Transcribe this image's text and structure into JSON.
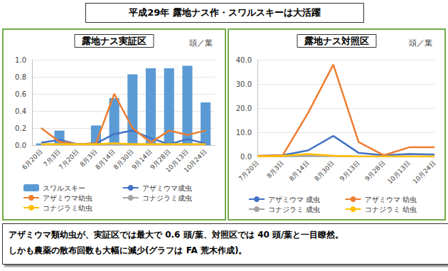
{
  "header": {
    "title": "平成29年 露地ナス作・スワルスキーは大活躍"
  },
  "chart_data": [
    {
      "type": "bar",
      "title": "露地ナス実証区",
      "ylabel": "頭／葉",
      "categories": [
        "6月20日",
        "7月3日",
        "7月20日",
        "8月3日",
        "8月14日",
        "8月30日",
        "9月14日",
        "9月28日",
        "10月13日",
        "10月24日"
      ],
      "series": [
        {
          "name": "スワルスキー",
          "type": "bar",
          "color": "#5B9BD5",
          "values": [
            0.02,
            0.17,
            0.02,
            0.23,
            0.55,
            0.83,
            0.9,
            0.9,
            0.93,
            0.5
          ]
        },
        {
          "name": "アザミウマ成虫",
          "type": "line",
          "color": "#4472C4",
          "values": [
            0.03,
            0.06,
            0.01,
            0.02,
            0.13,
            0.17,
            0.08,
            0.01,
            0.07,
            0.02
          ]
        },
        {
          "name": "アザミウマ幼虫",
          "type": "line",
          "color": "#ED7D31",
          "values": [
            0.2,
            0.04,
            0.01,
            0.02,
            0.6,
            0.2,
            0.03,
            0.17,
            0.12,
            0.17
          ]
        },
        {
          "name": "コナジラミ成虫",
          "type": "line",
          "color": "#A5A5A5",
          "values": [
            0.01,
            0.01,
            0.01,
            0.01,
            0.01,
            0.01,
            0.01,
            0.01,
            0.01,
            0.01
          ]
        },
        {
          "name": "コナジラミ幼虫",
          "type": "line",
          "color": "#FFC000",
          "values": [
            0.01,
            0.01,
            0.01,
            0.01,
            0.02,
            0.01,
            0.01,
            0.01,
            0.01,
            0.01
          ]
        }
      ],
      "ylim": [
        0,
        1.0
      ],
      "yticks": [
        {
          "value": 0,
          "label": "0.0"
        },
        {
          "value": 0.2,
          "label": "0.2"
        },
        {
          "value": 0.4,
          "label": "0.4"
        },
        {
          "value": 0.6,
          "label": "0.6"
        },
        {
          "value": 0.8,
          "label": "0.8"
        },
        {
          "value": 1.0,
          "label": "1.0"
        }
      ],
      "grid": true,
      "legend": "bottom"
    },
    {
      "type": "line",
      "title": "露地ナス対照区",
      "ylabel": "頭／葉",
      "categories": [
        "7月20日",
        "8月3日",
        "8月14日",
        "8月30日",
        "9月13日",
        "9月28日",
        "10月13日",
        "10月24日"
      ],
      "series": [
        {
          "name": "アザミウマ 成虫",
          "color": "#4472C4",
          "values": [
            0.2,
            0.5,
            2.5,
            8.5,
            1.5,
            0.5,
            1.0,
            0.8
          ]
        },
        {
          "name": "アザミウマ 幼虫",
          "color": "#ED7D31",
          "values": [
            0.2,
            0.5,
            18,
            38,
            6,
            0.5,
            3.8,
            3.8
          ]
        },
        {
          "name": "コナジラミ 成虫",
          "color": "#A5A5A5",
          "values": [
            0,
            0,
            0.3,
            0.3,
            0,
            0,
            0,
            0
          ]
        },
        {
          "name": "コナジラミ 幼虫",
          "color": "#FFC000",
          "values": [
            0,
            0.2,
            1,
            0.3,
            0,
            0,
            0,
            0
          ]
        }
      ],
      "ylim": [
        0,
        40
      ],
      "yticks": [
        {
          "value": 0,
          "label": "0.0"
        },
        {
          "value": 10,
          "label": "10.0"
        },
        {
          "value": 20,
          "label": "20.0"
        },
        {
          "value": 30,
          "label": "30.0"
        },
        {
          "value": 40,
          "label": "40.0"
        }
      ],
      "grid": true,
      "legend": "bottom"
    }
  ],
  "caption": [
    "アザミウマ類幼虫が、実証区では最大で 0.6 頭/葉、対照区では 40 頭/葉と一目瞭然。",
    "しかも農薬の散布回数も大幅に減少(グラフは FA 荒木作成)。"
  ]
}
